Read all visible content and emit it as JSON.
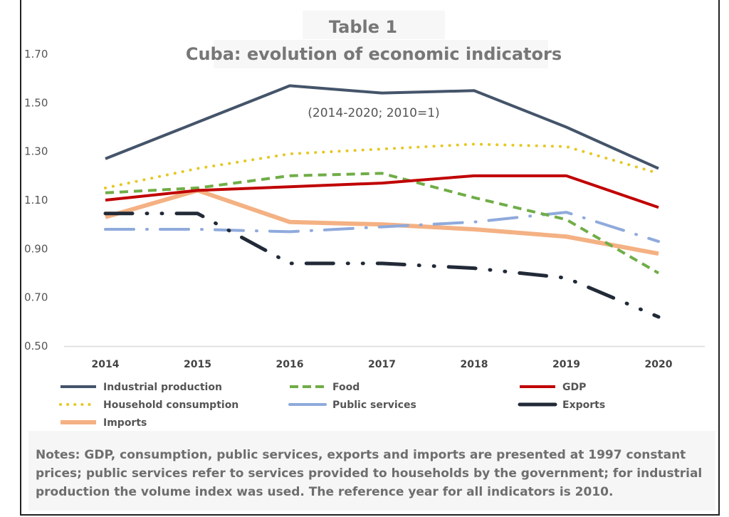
{
  "chart_data": {
    "type": "line",
    "title": "Table 1",
    "subtitle": "Cuba: evolution of economic indicators",
    "annotation": "(2014-2020; 2010=1)",
    "xlabel": "",
    "ylabel": "",
    "categories": [
      "2014",
      "2015",
      "2016",
      "2017",
      "2018",
      "2019",
      "2020"
    ],
    "ylim": [
      0.5,
      1.7
    ],
    "yticks": [
      "0.50",
      "0.70",
      "0.90",
      "1.10",
      "1.30",
      "1.50",
      "1.70"
    ],
    "grid": false,
    "legend_position": "bottom",
    "series": [
      {
        "name": "Industrial production",
        "color": "#44546a",
        "style": "solid",
        "values": [
          1.27,
          1.42,
          1.57,
          1.54,
          1.55,
          1.4,
          1.23
        ]
      },
      {
        "name": "Food",
        "color": "#70ad47",
        "style": "dashed",
        "values": [
          1.13,
          1.15,
          1.2,
          1.21,
          1.11,
          1.02,
          0.8
        ]
      },
      {
        "name": "GDP",
        "color": "#c00000",
        "style": "solid",
        "values": [
          1.1,
          1.14,
          1.155,
          1.17,
          1.2,
          1.2,
          1.07
        ]
      },
      {
        "name": "Household consumption",
        "color": "#e6c823",
        "style": "dotted",
        "values": [
          1.15,
          1.23,
          1.29,
          1.31,
          1.33,
          1.32,
          1.21
        ]
      },
      {
        "name": "Public services",
        "color": "#8faadc",
        "style": "dash-dot",
        "values": [
          0.98,
          0.98,
          0.97,
          0.99,
          1.01,
          1.05,
          0.93
        ]
      },
      {
        "name": "Exports",
        "color": "#222a38",
        "style": "dash-dot-dot",
        "values": [
          1.045,
          1.045,
          0.84,
          0.84,
          0.82,
          0.78,
          0.62
        ]
      },
      {
        "name": "Imports",
        "color": "#f4b183",
        "style": "solid-thick",
        "values": [
          1.03,
          1.14,
          1.01,
          1.0,
          0.98,
          0.95,
          0.88
        ]
      }
    ]
  },
  "notes": [
    "Notes: GDP, consumption, public services, exports and imports are presented at 1997 constant",
    "prices; public services refer to services provided to households by the government; for industrial",
    "production the volume index was used. The reference year for all indicators is 2010."
  ]
}
